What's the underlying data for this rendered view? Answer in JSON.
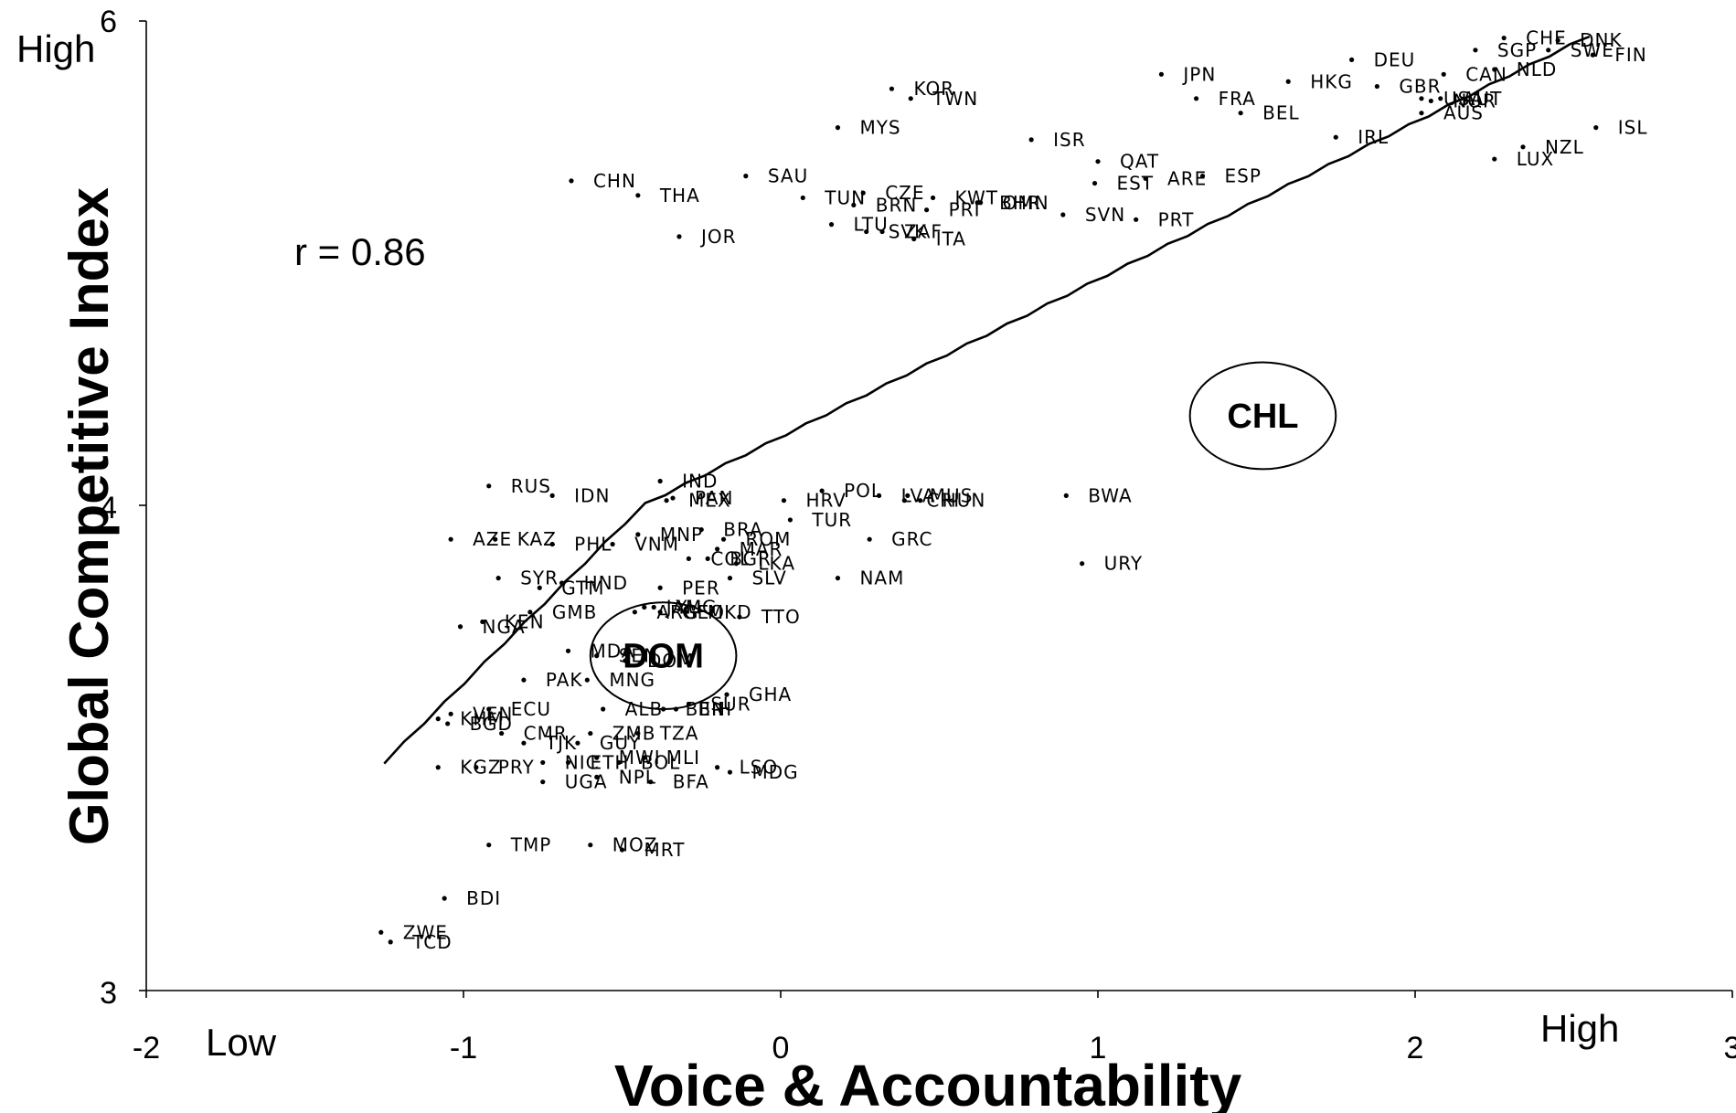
{
  "chart_data": {
    "type": "scatter",
    "xlabel": "Voice & Accountability",
    "ylabel": "Global Competitive Index",
    "xlim": [
      -2,
      3
    ],
    "ylim": [
      3,
      6
    ],
    "x_ticks": [
      "-2",
      "-1",
      "0",
      "1",
      "2",
      "3"
    ],
    "y_ticks": [
      "3",
      "4",
      "6"
    ],
    "x_low_label": "Low",
    "x_high_label": "High",
    "y_high_label": "High",
    "annotation": "r = 0.86",
    "fit_line": {
      "x": [
        -1.25,
        2.55
      ],
      "y": [
        3.47,
        5.94
      ]
    },
    "highlights": [
      {
        "label": "CHL",
        "cx": 1.52,
        "cy": 4.37,
        "rx": 0.23,
        "ry": 0.11
      },
      {
        "label": "DOM",
        "cx": -0.37,
        "cy": 3.69,
        "rx": 0.23,
        "ry": 0.11
      }
    ],
    "points": [
      {
        "label": "CHE",
        "x": 2.28,
        "y": 5.93
      },
      {
        "label": "DNK",
        "x": 2.45,
        "y": 5.92
      },
      {
        "label": "SGP",
        "x": 2.19,
        "y": 5.88
      },
      {
        "label": "SWE",
        "x": 2.42,
        "y": 5.88
      },
      {
        "label": "FIN",
        "x": 2.56,
        "y": 5.86
      },
      {
        "label": "DEU",
        "x": 1.8,
        "y": 5.84
      },
      {
        "label": "NLD",
        "x": 2.25,
        "y": 5.8
      },
      {
        "label": "CAN",
        "x": 2.09,
        "y": 5.78
      },
      {
        "label": "JPN",
        "x": 1.2,
        "y": 5.78
      },
      {
        "label": "HKG",
        "x": 1.6,
        "y": 5.75
      },
      {
        "label": "GBR",
        "x": 1.88,
        "y": 5.73
      },
      {
        "label": "USA",
        "x": 2.02,
        "y": 5.68
      },
      {
        "label": "AUT",
        "x": 2.08,
        "y": 5.68
      },
      {
        "label": "NOR",
        "x": 2.05,
        "y": 5.67
      },
      {
        "label": "AUS",
        "x": 2.02,
        "y": 5.62
      },
      {
        "label": "KOR",
        "x": 0.35,
        "y": 5.72
      },
      {
        "label": "TWN",
        "x": 0.41,
        "y": 5.68
      },
      {
        "label": "FRA",
        "x": 1.31,
        "y": 5.68
      },
      {
        "label": "BEL",
        "x": 1.45,
        "y": 5.62
      },
      {
        "label": "MYS",
        "x": 0.18,
        "y": 5.56
      },
      {
        "label": "ISL",
        "x": 2.57,
        "y": 5.56
      },
      {
        "label": "ISR",
        "x": 0.79,
        "y": 5.51
      },
      {
        "label": "IRL",
        "x": 1.75,
        "y": 5.52
      },
      {
        "label": "NZL",
        "x": 2.34,
        "y": 5.48
      },
      {
        "label": "LUX",
        "x": 2.25,
        "y": 5.43
      },
      {
        "label": "QAT",
        "x": 1.0,
        "y": 5.42
      },
      {
        "label": "ESP",
        "x": 1.33,
        "y": 5.36
      },
      {
        "label": "ARE",
        "x": 1.15,
        "y": 5.35
      },
      {
        "label": "EST",
        "x": 0.99,
        "y": 5.33
      },
      {
        "label": "CHN",
        "x": -0.66,
        "y": 5.34
      },
      {
        "label": "SAU",
        "x": -0.11,
        "y": 5.36
      },
      {
        "label": "THA",
        "x": -0.45,
        "y": 5.28
      },
      {
        "label": "CZE",
        "x": 0.26,
        "y": 5.29
      },
      {
        "label": "TUN",
        "x": 0.07,
        "y": 5.27
      },
      {
        "label": "KWT",
        "x": 0.48,
        "y": 5.27
      },
      {
        "label": "BRN",
        "x": 0.23,
        "y": 5.24
      },
      {
        "label": "BHR",
        "x": 0.62,
        "y": 5.25
      },
      {
        "label": "OMN",
        "x": 0.63,
        "y": 5.25
      },
      {
        "label": "PRI",
        "x": 0.46,
        "y": 5.22
      },
      {
        "label": "SVN",
        "x": 0.89,
        "y": 5.2
      },
      {
        "label": "PRT",
        "x": 1.12,
        "y": 5.18
      },
      {
        "label": "LTU",
        "x": 0.16,
        "y": 5.16
      },
      {
        "label": "SVK",
        "x": 0.27,
        "y": 5.13
      },
      {
        "label": "ZAF",
        "x": 0.32,
        "y": 5.13
      },
      {
        "label": "JOR",
        "x": -0.32,
        "y": 5.11
      },
      {
        "label": "ITA",
        "x": 0.42,
        "y": 5.1
      },
      {
        "label": "IND",
        "x": -0.38,
        "y": 4.1
      },
      {
        "label": "RUS",
        "x": -0.92,
        "y": 4.08
      },
      {
        "label": "POL",
        "x": 0.13,
        "y": 4.06
      },
      {
        "label": "IDN",
        "x": -0.72,
        "y": 4.04
      },
      {
        "label": "LVA",
        "x": 0.31,
        "y": 4.04
      },
      {
        "label": "MUS",
        "x": 0.4,
        "y": 4.04
      },
      {
        "label": "BWA",
        "x": 0.9,
        "y": 4.04
      },
      {
        "label": "PAN",
        "x": -0.34,
        "y": 4.03
      },
      {
        "label": "MEX",
        "x": -0.36,
        "y": 4.02
      },
      {
        "label": "CRI",
        "x": 0.39,
        "y": 4.02
      },
      {
        "label": "HUN",
        "x": 0.44,
        "y": 4.02
      },
      {
        "label": "HRV",
        "x": 0.01,
        "y": 4.02
      },
      {
        "label": "TUR",
        "x": 0.03,
        "y": 3.97
      },
      {
        "label": "BRA",
        "x": -0.25,
        "y": 3.95
      },
      {
        "label": "MNP",
        "x": -0.45,
        "y": 3.94
      },
      {
        "label": "GRC",
        "x": 0.28,
        "y": 3.93
      },
      {
        "label": "AZE",
        "x": -1.04,
        "y": 3.93
      },
      {
        "label": "KAZ",
        "x": -0.9,
        "y": 3.93
      },
      {
        "label": "PHL",
        "x": -0.72,
        "y": 3.92
      },
      {
        "label": "VNM",
        "x": -0.53,
        "y": 3.92
      },
      {
        "label": "ROM",
        "x": -0.18,
        "y": 3.93
      },
      {
        "label": "MAR",
        "x": -0.2,
        "y": 3.91
      },
      {
        "label": "COL",
        "x": -0.29,
        "y": 3.89
      },
      {
        "label": "BGR",
        "x": -0.23,
        "y": 3.89
      },
      {
        "label": "LKA",
        "x": -0.14,
        "y": 3.88
      },
      {
        "label": "SLV",
        "x": -0.16,
        "y": 3.85
      },
      {
        "label": "URY",
        "x": 0.95,
        "y": 3.88
      },
      {
        "label": "NAM",
        "x": 0.18,
        "y": 3.85
      },
      {
        "label": "SYR",
        "x": -0.89,
        "y": 3.85
      },
      {
        "label": "HND",
        "x": -0.69,
        "y": 3.84
      },
      {
        "label": "PER",
        "x": -0.38,
        "y": 3.83
      },
      {
        "label": "GTM",
        "x": -0.76,
        "y": 3.83
      },
      {
        "label": "JAM",
        "x": -0.43,
        "y": 3.79
      },
      {
        "label": "YUG",
        "x": -0.4,
        "y": 3.79
      },
      {
        "label": "ARG",
        "x": -0.46,
        "y": 3.78
      },
      {
        "label": "GEO",
        "x": -0.38,
        "y": 3.78
      },
      {
        "label": "MKD",
        "x": -0.3,
        "y": 3.78
      },
      {
        "label": "TTO",
        "x": -0.13,
        "y": 3.77
      },
      {
        "label": "GMB",
        "x": -0.79,
        "y": 3.78
      },
      {
        "label": "NGA",
        "x": -1.01,
        "y": 3.75
      },
      {
        "label": "KEN",
        "x": -0.94,
        "y": 3.76
      },
      {
        "label": "MDA",
        "x": -0.67,
        "y": 3.7
      },
      {
        "label": "SEN",
        "x": -0.58,
        "y": 3.69
      },
      {
        "label": "DOM",
        "x": -0.49,
        "y": 3.68
      },
      {
        "label": "PAK",
        "x": -0.81,
        "y": 3.64
      },
      {
        "label": "MNG",
        "x": -0.61,
        "y": 3.64
      },
      {
        "label": "GHA",
        "x": -0.17,
        "y": 3.61
      },
      {
        "label": "SUR",
        "x": -0.29,
        "y": 3.59
      },
      {
        "label": "ECU",
        "x": -0.92,
        "y": 3.58
      },
      {
        "label": "ALB",
        "x": -0.56,
        "y": 3.58
      },
      {
        "label": "BEN",
        "x": -0.37,
        "y": 3.58
      },
      {
        "label": "BIH",
        "x": -0.33,
        "y": 3.58
      },
      {
        "label": "VEN",
        "x": -1.04,
        "y": 3.57
      },
      {
        "label": "KHM",
        "x": -1.08,
        "y": 3.56
      },
      {
        "label": "BGD",
        "x": -1.05,
        "y": 3.55
      },
      {
        "label": "CMR",
        "x": -0.88,
        "y": 3.53
      },
      {
        "label": "TJK",
        "x": -0.81,
        "y": 3.51
      },
      {
        "label": "ZMB",
        "x": -0.6,
        "y": 3.53
      },
      {
        "label": "TZA",
        "x": -0.45,
        "y": 3.53
      },
      {
        "label": "GUY",
        "x": -0.64,
        "y": 3.51
      },
      {
        "label": "NIC",
        "x": -0.75,
        "y": 3.47
      },
      {
        "label": "ETH",
        "x": -0.67,
        "y": 3.47
      },
      {
        "label": "MWI",
        "x": -0.58,
        "y": 3.48
      },
      {
        "label": "MLI",
        "x": -0.43,
        "y": 3.48
      },
      {
        "label": "BOL",
        "x": -0.51,
        "y": 3.47
      },
      {
        "label": "KGZ",
        "x": -1.08,
        "y": 3.46
      },
      {
        "label": "PRY",
        "x": -0.96,
        "y": 3.46
      },
      {
        "label": "LSO",
        "x": -0.2,
        "y": 3.46
      },
      {
        "label": "MDG",
        "x": -0.16,
        "y": 3.45
      },
      {
        "label": "NPL",
        "x": -0.58,
        "y": 3.44
      },
      {
        "label": "BFA",
        "x": -0.41,
        "y": 3.43
      },
      {
        "label": "UGA",
        "x": -0.75,
        "y": 3.43
      },
      {
        "label": "TMP",
        "x": -0.92,
        "y": 3.3
      },
      {
        "label": "MOZ",
        "x": -0.6,
        "y": 3.3
      },
      {
        "label": "MRT",
        "x": -0.5,
        "y": 3.29
      },
      {
        "label": "BDI",
        "x": -1.06,
        "y": 3.19
      },
      {
        "label": "ZWE",
        "x": -1.26,
        "y": 3.12
      },
      {
        "label": "TCD",
        "x": -1.23,
        "y": 3.1
      }
    ]
  }
}
